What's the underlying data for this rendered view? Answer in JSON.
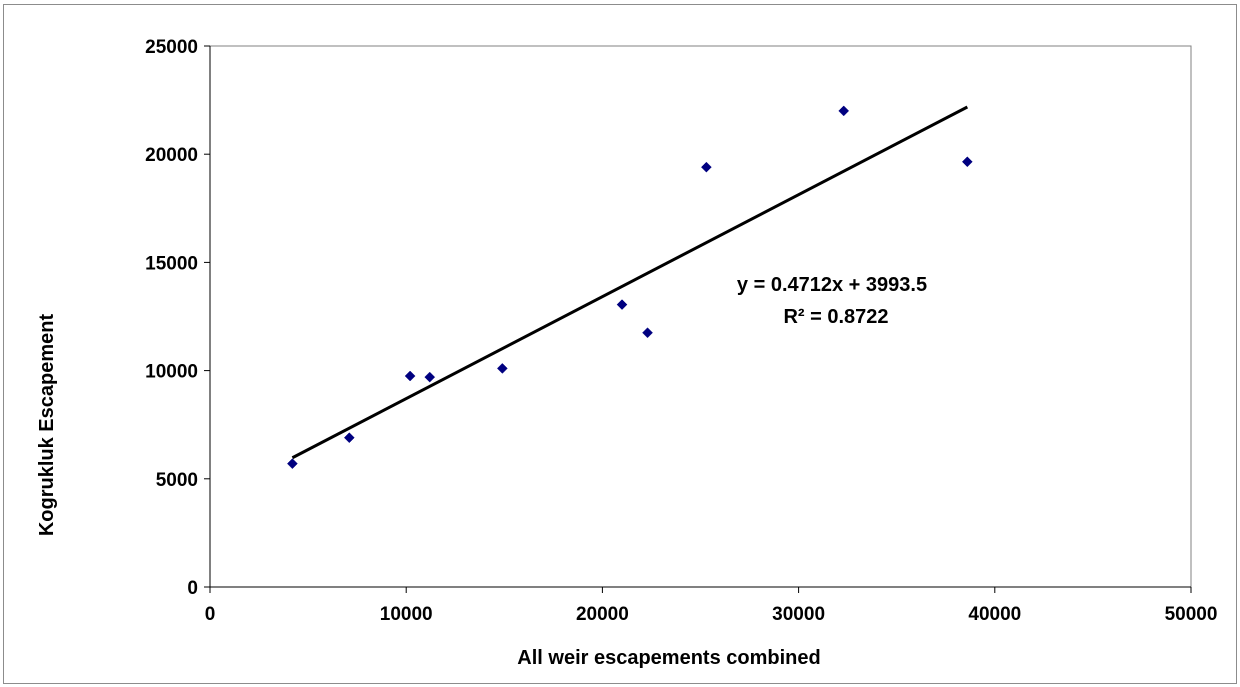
{
  "chart_data": {
    "type": "scatter",
    "title": "",
    "xlabel": "All weir escapements combined",
    "ylabel": "Kogrukluk  Escapement",
    "xlim": [
      0,
      50000
    ],
    "ylim": [
      0,
      25000
    ],
    "x_ticks": [
      "0",
      "10000",
      "20000",
      "30000",
      "40000",
      "50000"
    ],
    "y_ticks": [
      "0",
      "5000",
      "10000",
      "15000",
      "20000",
      "25000"
    ],
    "grid": false,
    "legend": "none",
    "marker_color": "#000080",
    "trendline_color": "#000000",
    "series": [
      {
        "points": [
          {
            "x": 4200,
            "y": 5700
          },
          {
            "x": 7100,
            "y": 6900
          },
          {
            "x": 10200,
            "y": 9750
          },
          {
            "x": 11200,
            "y": 9700
          },
          {
            "x": 14900,
            "y": 10100
          },
          {
            "x": 21000,
            "y": 13050
          },
          {
            "x": 22300,
            "y": 11750
          },
          {
            "x": 25300,
            "y": 19400
          },
          {
            "x": 32300,
            "y": 22000
          },
          {
            "x": 38600,
            "y": 19650
          }
        ]
      }
    ],
    "trendline": {
      "slope": 0.4712,
      "intercept": 3993.5,
      "x_range": [
        4200,
        38600
      ],
      "equation_label": "y = 0.4712x + 3993.5",
      "r2_label": "R² = 0.8722"
    }
  }
}
